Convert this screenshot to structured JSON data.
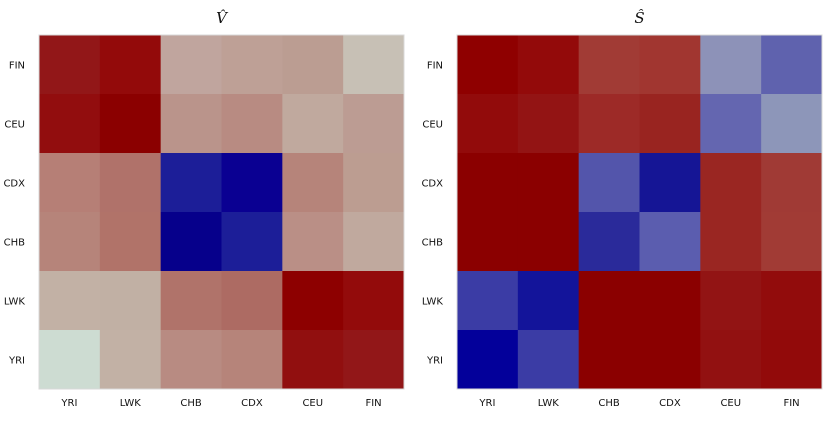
{
  "chart_data": [
    {
      "type": "heatmap",
      "title": "V̂",
      "x_categories": [
        "YRI",
        "LWK",
        "CHB",
        "CDX",
        "CEU",
        "FIN"
      ],
      "y_categories_top_to_bottom": [
        "FIN",
        "CEU",
        "CDX",
        "CHB",
        "LWK",
        "YRI"
      ],
      "cell_colors_top_to_bottom": [
        [
          "#921718",
          "#930a0a",
          "#c0a59e",
          "#bea096",
          "#bb9d92",
          "#c7c0b5"
        ],
        [
          "#920d0e",
          "#8b0000",
          "#ba948b",
          "#b88b82",
          "#c0a99e",
          "#bc9c93"
        ],
        [
          "#b67f76",
          "#b0726a",
          "#1c1e98",
          "#0a0092",
          "#b6847a",
          "#bc9d91"
        ],
        [
          "#b6847a",
          "#b17369",
          "#06008b",
          "#1c1e98",
          "#ba8f86",
          "#c0a99e"
        ],
        [
          "#c2b1a5",
          "#c1b0a4",
          "#b0736a",
          "#ad6b63",
          "#8d0000",
          "#930b0b"
        ],
        [
          "#cddcd2",
          "#c2b1a5",
          "#b88b82",
          "#b6847a",
          "#910f0f",
          "#921718"
        ]
      ]
    },
    {
      "type": "heatmap",
      "title": "Ŝ",
      "x_categories": [
        "YRI",
        "LWK",
        "CHB",
        "CDX",
        "CEU",
        "FIN"
      ],
      "y_categories_top_to_bottom": [
        "FIN",
        "CEU",
        "CDX",
        "CHB",
        "LWK",
        "YRI"
      ],
      "cell_colors_top_to_bottom": [
        [
          "#8f0000",
          "#930a0a",
          "#a13b35",
          "#a13630",
          "#8d92b8",
          "#5f62ae"
        ],
        [
          "#920b0b",
          "#931414",
          "#9d2a27",
          "#992420",
          "#6466b0",
          "#8d96b9"
        ],
        [
          "#8b0000",
          "#8b0000",
          "#5355ab",
          "#151595",
          "#9a2622",
          "#a03a35"
        ],
        [
          "#8b0000",
          "#8b0000",
          "#2a2a9a",
          "#5b5daf",
          "#9a2622",
          "#a13b35"
        ],
        [
          "#3b3ca5",
          "#13149a",
          "#8b0000",
          "#8b0000",
          "#921414",
          "#920c0c"
        ],
        [
          "#03009a",
          "#3b3ca5",
          "#8b0000",
          "#8b0000",
          "#921111",
          "#920a0a"
        ]
      ]
    }
  ]
}
